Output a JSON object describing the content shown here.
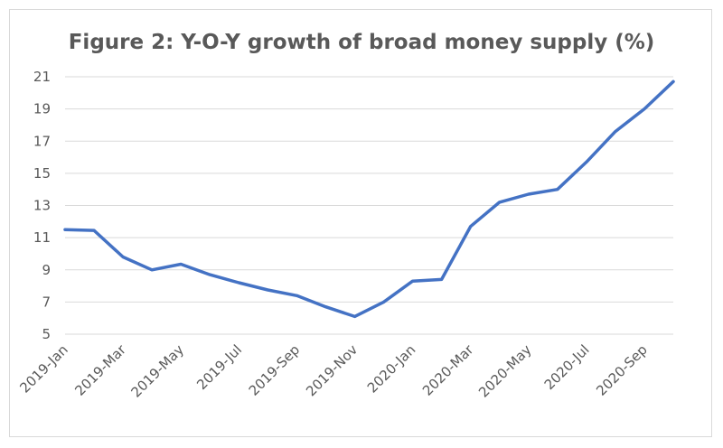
{
  "chart_data": {
    "type": "line",
    "title": "Figure 2: Y-O-Y growth of broad money supply (%)",
    "xlabel": "",
    "ylabel": "",
    "ylim": [
      5,
      21
    ],
    "yticks": [
      5,
      7,
      9,
      11,
      13,
      15,
      17,
      19,
      21
    ],
    "grid": true,
    "legend": "none",
    "x_tick_labels": [
      "2019-Jan",
      "2019-Mar",
      "2019-May",
      "2019-Jul",
      "2019-Sep",
      "2019-Nov",
      "2020-Jan",
      "2020-Mar",
      "2020-May",
      "2020-Jul",
      "2020-Sep"
    ],
    "x": [
      "2019-Jan",
      "2019-Feb",
      "2019-Mar",
      "2019-Apr",
      "2019-May",
      "2019-Jun",
      "2019-Jul",
      "2019-Aug",
      "2019-Sep",
      "2019-Oct",
      "2019-Nov",
      "2019-Dec",
      "2020-Jan",
      "2020-Feb",
      "2020-Mar",
      "2020-Apr",
      "2020-May",
      "2020-Jun",
      "2020-Jul",
      "2020-Aug",
      "2020-Sep",
      "2020-Oct"
    ],
    "series": [
      {
        "color": "#4472c4",
        "values": [
          11.5,
          11.45,
          9.8,
          9.0,
          9.35,
          8.7,
          8.2,
          7.75,
          7.4,
          6.7,
          6.1,
          7.0,
          8.3,
          8.4,
          11.7,
          13.2,
          13.7,
          14.0,
          15.7,
          17.6,
          19.0,
          20.7
        ]
      }
    ]
  }
}
